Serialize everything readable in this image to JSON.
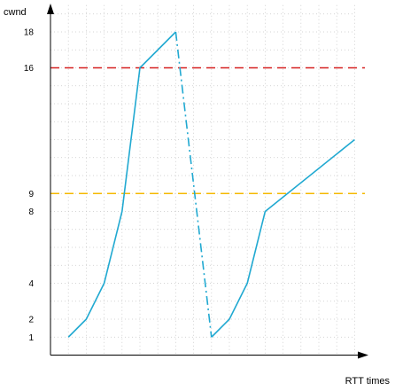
{
  "chart_data": {
    "type": "line",
    "xlabel": "RTT times",
    "ylabel": "cwnd",
    "ylim": [
      0,
      19
    ],
    "xlim": [
      0,
      17
    ],
    "y_ticks": [
      1,
      2,
      4,
      8,
      9,
      16,
      18
    ],
    "grid": true,
    "series": [
      {
        "style": "solid",
        "color": "#21a9d1",
        "points": [
          [
            1,
            1
          ],
          [
            2,
            2
          ],
          [
            3,
            4
          ],
          [
            4,
            8
          ],
          [
            5,
            16
          ],
          [
            7,
            18
          ]
        ]
      },
      {
        "style": "dash-dot",
        "color": "#21a9d1",
        "points": [
          [
            7,
            18
          ],
          [
            9,
            1
          ]
        ]
      },
      {
        "style": "solid",
        "color": "#21a9d1",
        "points": [
          [
            9,
            1
          ],
          [
            10,
            2
          ],
          [
            11,
            4
          ],
          [
            12,
            8
          ],
          [
            17,
            12
          ]
        ]
      }
    ],
    "thresholds": [
      {
        "value": 16,
        "color": "#d62020",
        "style": "dashed"
      },
      {
        "value": 9,
        "color": "#f5b800",
        "style": "dashed"
      }
    ]
  }
}
